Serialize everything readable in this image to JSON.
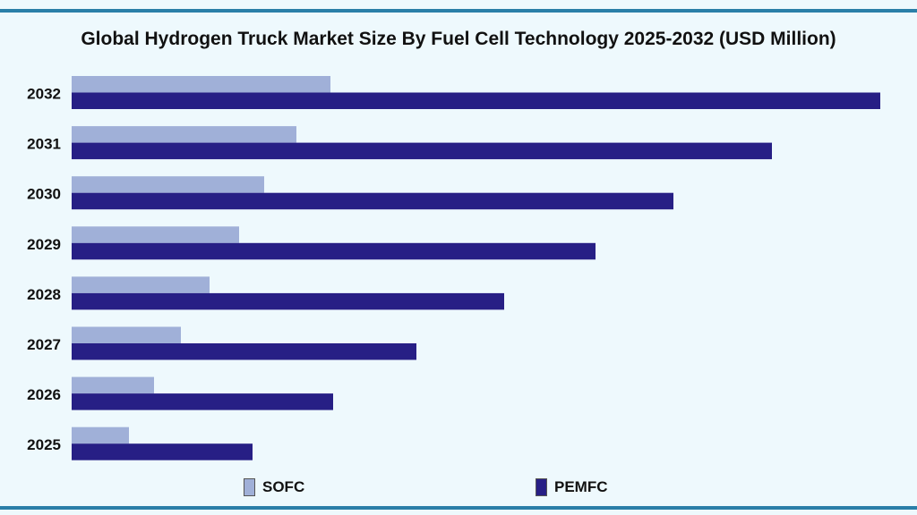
{
  "chart_data": {
    "type": "bar",
    "orientation": "horizontal",
    "title": "Global Hydrogen Truck Market Size By Fuel Cell Technology 2025-2032 (USD Million)",
    "categories": [
      "2032",
      "2031",
      "2030",
      "2029",
      "2028",
      "2027",
      "2026",
      "2025"
    ],
    "series": [
      {
        "name": "SOFC",
        "color": "#a0b0d8",
        "values": [
          289,
          251,
          215,
          187,
          154,
          122,
          92,
          64
        ]
      },
      {
        "name": "PEMFC",
        "color": "#271f85",
        "values": [
          903,
          782,
          672,
          585,
          483,
          385,
          292,
          202
        ]
      }
    ],
    "xlim": [
      0,
      950
    ],
    "value_note_hidden": false,
    "grid": false,
    "legend_position": "bottom"
  },
  "colors": {
    "background": "#eef9fd",
    "rule": "#2a7fa8"
  }
}
